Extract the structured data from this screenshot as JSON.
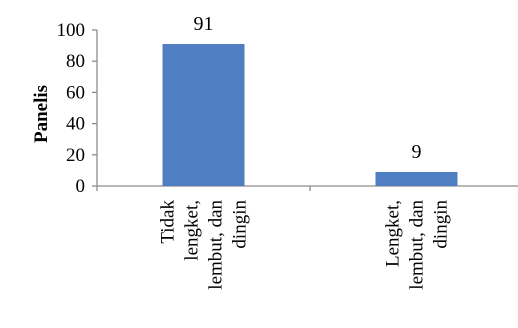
{
  "chart_data": {
    "type": "bar",
    "title": "",
    "xlabel": "",
    "ylabel": "Panelis",
    "ylim": [
      0,
      100
    ],
    "y_ticks": [
      "0",
      "20",
      "40",
      "60",
      "80",
      "100"
    ],
    "categories": [
      [
        "Tidak",
        "lengket,",
        "lembut, dan",
        "dingin"
      ],
      [
        "Lengket,",
        "lembut, dan",
        "dingin"
      ]
    ],
    "values": [
      91,
      9
    ],
    "data_labels": [
      "91",
      "9"
    ],
    "bar_color": "#4f7ec3",
    "grid": false,
    "legend": "none"
  }
}
